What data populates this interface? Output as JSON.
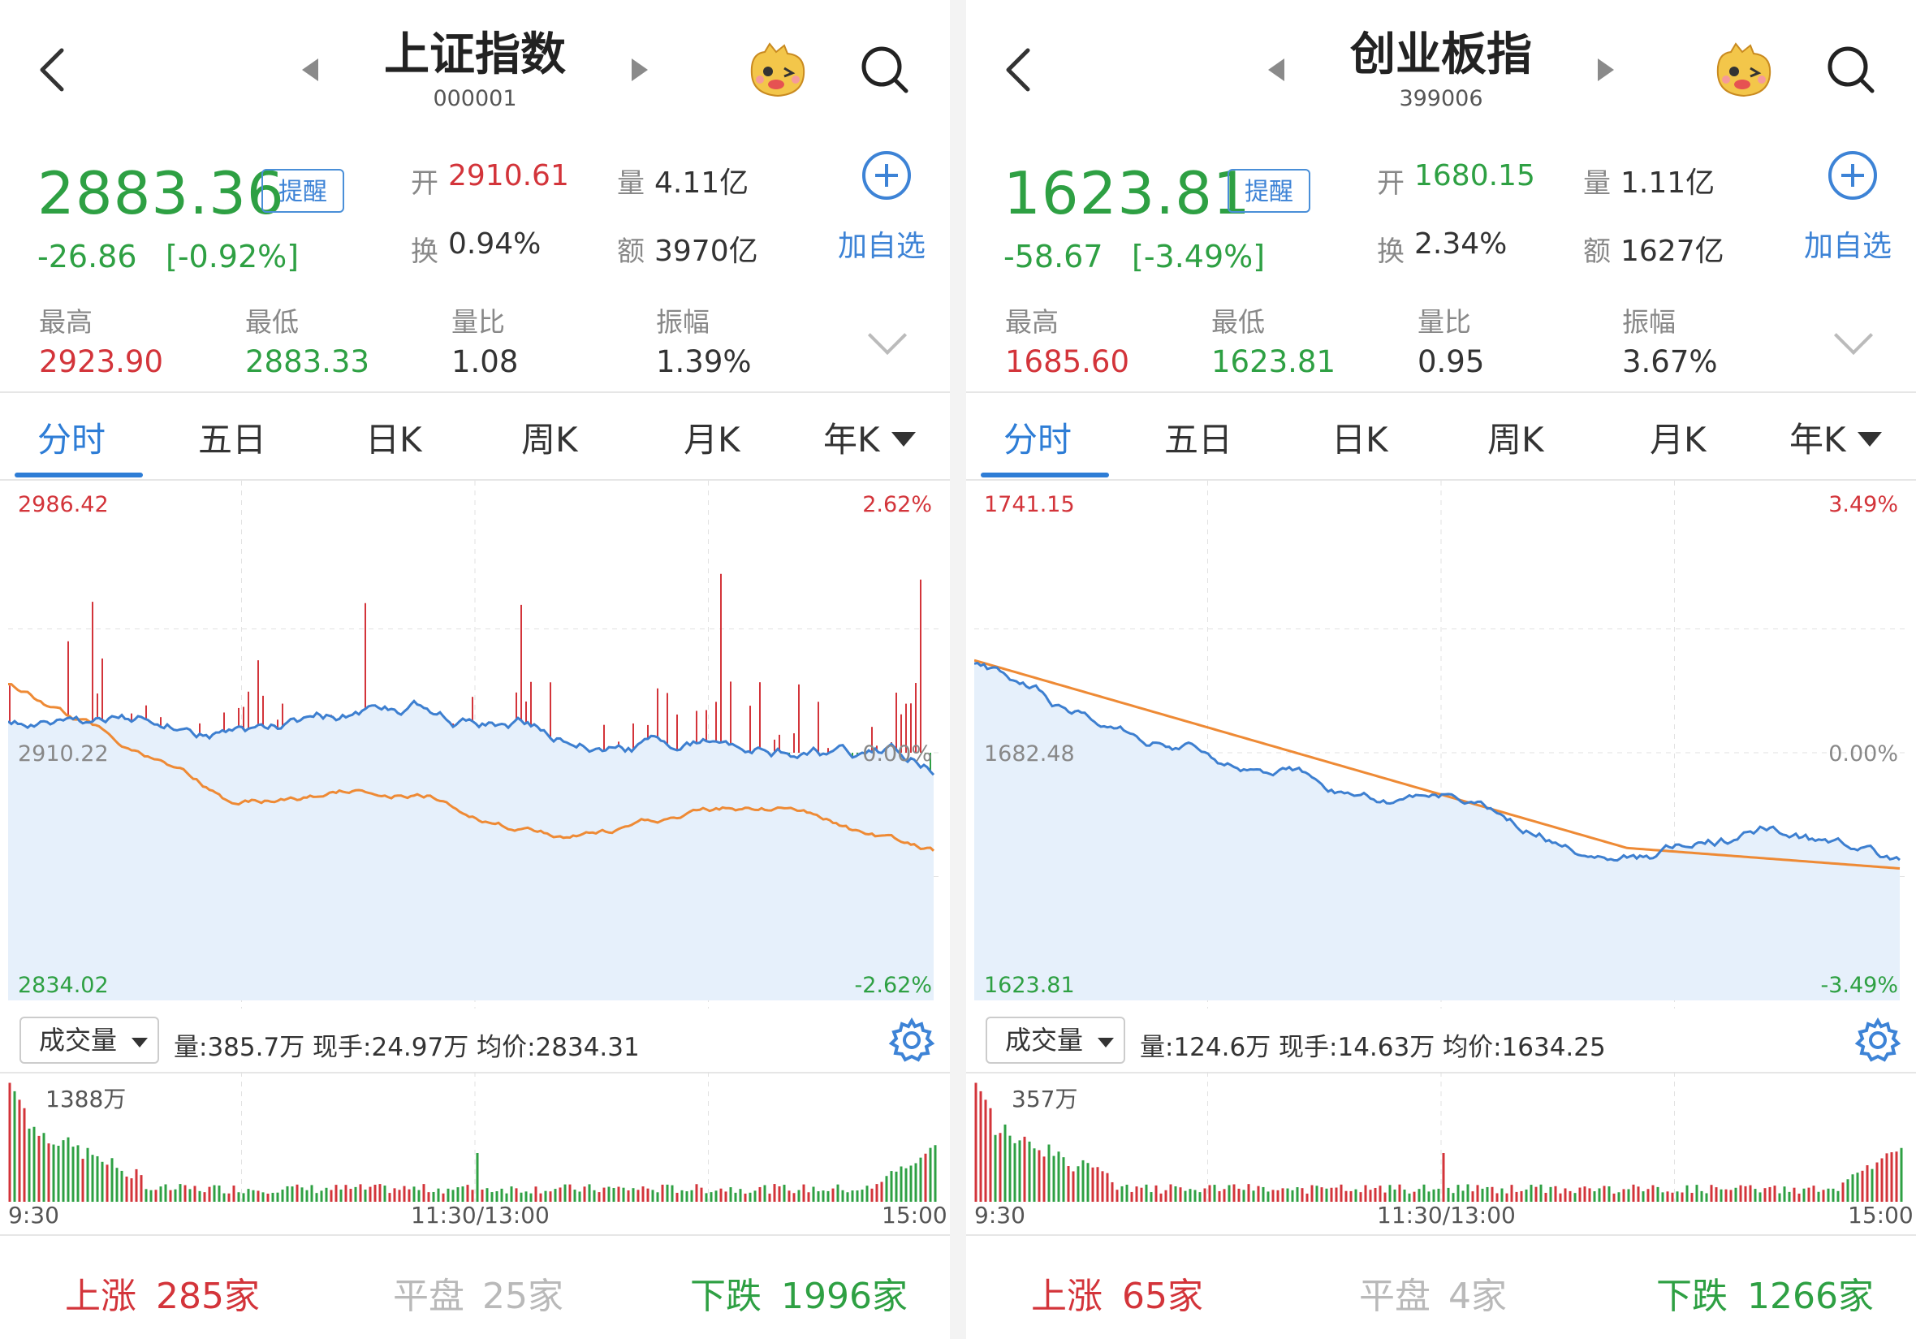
{
  "panels": [
    {
      "title": "上证指数",
      "code": "000001",
      "price": "2883.36",
      "remind": "提醒",
      "change": "-26.86",
      "change_pct": "[-0.92%]",
      "open_label": "开",
      "open": "2910.61",
      "open_color": "red",
      "volume_label": "量",
      "volume": "4.11亿",
      "turnover_label": "换",
      "turnover": "0.94%",
      "amount_label": "额",
      "amount": "3970亿",
      "add_label": "加自选",
      "high_label": "最高",
      "high": "2923.90",
      "low_label": "最低",
      "low": "2883.33",
      "vol_ratio_label": "量比",
      "vol_ratio": "1.08",
      "amplitude_label": "振幅",
      "amplitude": "1.39%",
      "tabs": [
        "分时",
        "五日",
        "日K",
        "周K",
        "月K",
        "年K"
      ],
      "chart": {
        "max_label": "2986.42",
        "min_label": "2834.02",
        "mid_label": "2910.22",
        "pct_top": "2.62%",
        "pct_mid": "0.00%",
        "pct_bot": "-2.62%"
      },
      "vol_select": "成交量",
      "vol_info": "量:385.7万  现手:24.97万  均价:2834.31",
      "vol_max": "1388万",
      "time_start": "9:30",
      "time_mid": "11:30/13:00",
      "time_end": "15:00",
      "up_label": "上涨",
      "up_count": "285家",
      "flat_label": "平盘",
      "flat_count": "25家",
      "down_label": "下跌",
      "down_count": "1996家"
    },
    {
      "title": "创业板指",
      "code": "399006",
      "price": "1623.81",
      "remind": "提醒",
      "change": "-58.67",
      "change_pct": "[-3.49%]",
      "open_label": "开",
      "open": "1680.15",
      "open_color": "green",
      "volume_label": "量",
      "volume": "1.11亿",
      "turnover_label": "换",
      "turnover": "2.34%",
      "amount_label": "额",
      "amount": "1627亿",
      "add_label": "加自选",
      "high_label": "最高",
      "high": "1685.60",
      "low_label": "最低",
      "low": "1623.81",
      "vol_ratio_label": "量比",
      "vol_ratio": "0.95",
      "amplitude_label": "振幅",
      "amplitude": "3.67%",
      "tabs": [
        "分时",
        "五日",
        "日K",
        "周K",
        "月K",
        "年K"
      ],
      "chart": {
        "max_label": "1741.15",
        "min_label": "1623.81",
        "mid_label": "1682.48",
        "pct_top": "3.49%",
        "pct_mid": "0.00%",
        "pct_bot": "-3.49%"
      },
      "vol_select": "成交量",
      "vol_info": "量:124.6万  现手:14.63万  均价:1634.25",
      "vol_max": "357万",
      "time_start": "9:30",
      "time_mid": "11:30/13:00",
      "time_end": "15:00",
      "up_label": "上涨",
      "up_count": "65家",
      "flat_label": "平盘",
      "flat_count": "4家",
      "down_label": "下跌",
      "down_count": "1266家"
    }
  ],
  "colors": {
    "up": "#d3343a",
    "down": "#2ea043",
    "accent": "#2e7dd6",
    "price_line": "#3d7fd0",
    "avg_line": "#ee8a35"
  }
}
